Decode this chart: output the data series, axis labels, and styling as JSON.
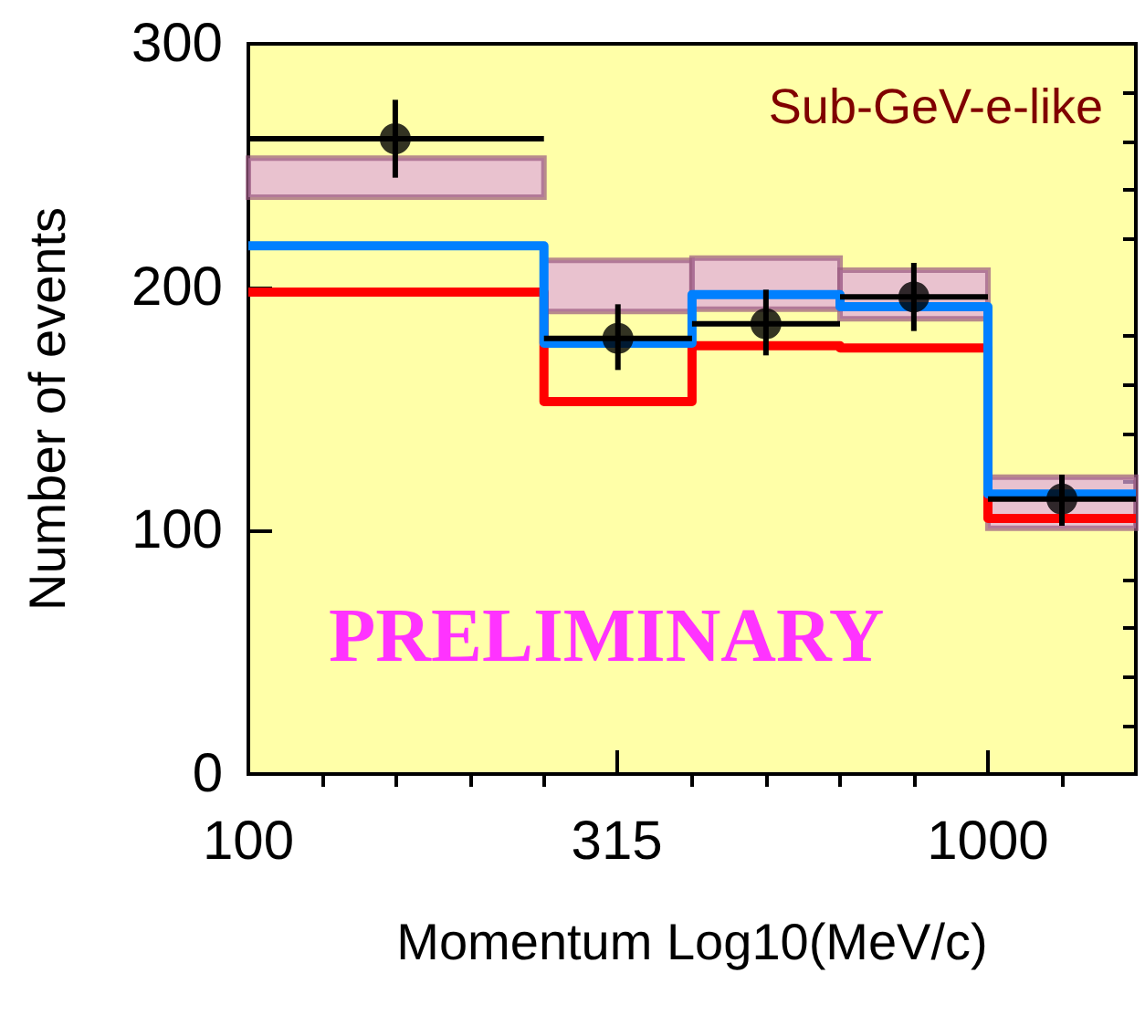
{
  "chart_data": {
    "type": "step",
    "title": "Sub-GeV-e-like",
    "xlabel": "Momentum Log10(MeV/c)",
    "ylabel": "Number of events",
    "annotations": [
      "PRELIMINARY"
    ],
    "log": "x",
    "grid": false,
    "xlim": [
      100,
      1585
    ],
    "xticks": [
      100,
      {
        "value": 126,
        "label": null
      },
      {
        "value": 158,
        "label": null
      },
      {
        "value": 200,
        "label": null
      },
      {
        "value": 251,
        "label": null
      },
      315,
      {
        "value": 398,
        "label": null
      },
      {
        "value": 501,
        "label": null
      },
      {
        "value": 631,
        "label": null
      },
      {
        "value": 794,
        "label": null
      },
      1000,
      {
        "value": 1259,
        "label": null
      }
    ],
    "ylim": [
      0,
      300
    ],
    "yticks": [
      0,
      {
        "value": 20,
        "label": null
      },
      {
        "value": 40,
        "label": null
      },
      {
        "value": 60,
        "label": null
      },
      {
        "value": 80,
        "label": null
      },
      100,
      {
        "value": 120,
        "label": null
      },
      {
        "value": 140,
        "label": null
      },
      {
        "value": 160,
        "label": null
      },
      {
        "value": 180,
        "label": null
      },
      200,
      {
        "value": 220,
        "label": null
      },
      {
        "value": 240,
        "label": null
      },
      {
        "value": 260,
        "label": null
      },
      {
        "value": 280,
        "label": null
      },
      300
    ],
    "series": [
      {
        "color": "#ff0000",
        "x": [
          100,
          251,
          398,
          631,
          1000,
          1585
        ],
        "values": [
          198,
          153,
          176,
          175,
          105,
          105
        ]
      },
      {
        "color": "#0080ff",
        "x": [
          100,
          251,
          398,
          631,
          1000,
          1585
        ],
        "values": [
          217,
          177,
          197,
          192,
          115,
          115
        ]
      },
      {
        "type": "scatter",
        "color": "#000000",
        "marker": "circle",
        "x": [
          158,
          316,
          501,
          794,
          1259
        ],
        "values": [
          261,
          179,
          185,
          196,
          113
        ],
        "errors": [
          [
            245,
            277
          ],
          [
            166,
            193
          ],
          [
            172,
            199
          ],
          [
            182,
            210
          ],
          [
            102,
            123
          ]
        ],
        "xerrors": [
          [
            100,
            251
          ],
          [
            251,
            398
          ],
          [
            398,
            631
          ],
          [
            631,
            1000
          ],
          [
            1000,
            1585
          ]
        ]
      },
      {
        "type": "histogram",
        "color": "#e0a8e0",
        "bins": [
          100,
          251,
          398,
          631,
          1000,
          1585
        ],
        "base": [
          237,
          190,
          191,
          187,
          101
        ],
        "values": [
          16,
          21,
          21,
          20,
          21
        ]
      }
    ]
  }
}
